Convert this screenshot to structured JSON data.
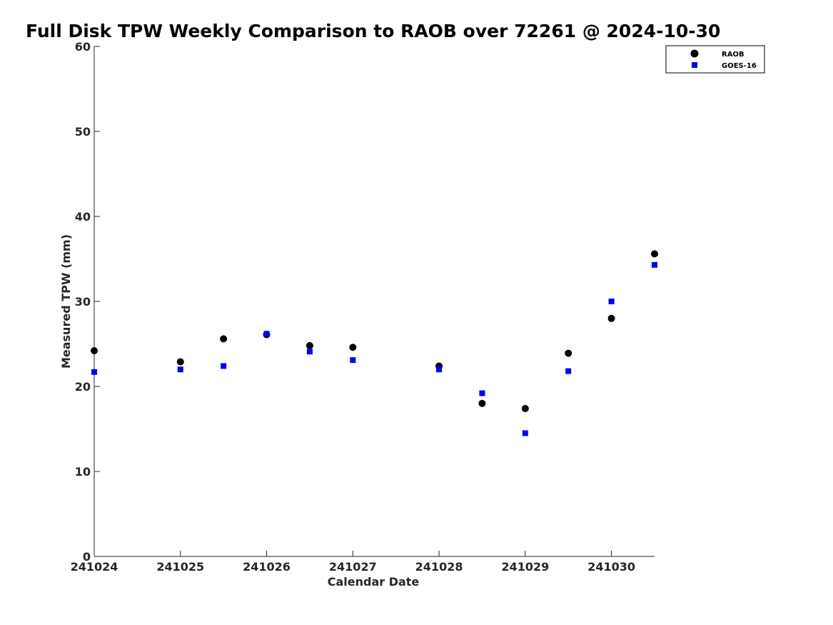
{
  "chart_data": {
    "type": "scatter",
    "title": "Full Disk TPW Weekly Comparison to RAOB over 72261 @ 2024-10-30",
    "xlabel": "Calendar Date",
    "ylabel": "Measured TPW (mm)",
    "xlim": [
      0,
      6.5
    ],
    "ylim": [
      0,
      60
    ],
    "x_ticks": [
      0,
      1,
      2,
      3,
      4,
      5,
      6
    ],
    "x_tick_labels": [
      "241024",
      "241025",
      "241026",
      "241027",
      "241028",
      "241029",
      "241030"
    ],
    "y_ticks": [
      0,
      10,
      20,
      30,
      40,
      50,
      60
    ],
    "y_tick_labels": [
      "0",
      "10",
      "20",
      "30",
      "40",
      "50",
      "60"
    ],
    "grid": false,
    "legend_position": "top-right",
    "series": [
      {
        "name": "RAOB",
        "marker": "circle",
        "color": "#000000",
        "x": [
          0,
          1,
          1.5,
          2,
          2.5,
          3,
          4,
          4.5,
          5,
          5.5,
          6,
          6.5
        ],
        "y": [
          24.2,
          22.9,
          25.6,
          26.1,
          24.8,
          24.6,
          22.4,
          18.0,
          17.4,
          23.9,
          28.0,
          35.6
        ]
      },
      {
        "name": "GOES-16",
        "marker": "square",
        "color": "#0000ff",
        "x": [
          0,
          1,
          1.5,
          2,
          2.5,
          3,
          4,
          4.5,
          5,
          5.5,
          6,
          6.5
        ],
        "y": [
          21.7,
          22.0,
          22.4,
          26.2,
          24.1,
          23.1,
          22.0,
          19.2,
          14.5,
          21.8,
          30.0,
          34.3
        ]
      }
    ]
  }
}
